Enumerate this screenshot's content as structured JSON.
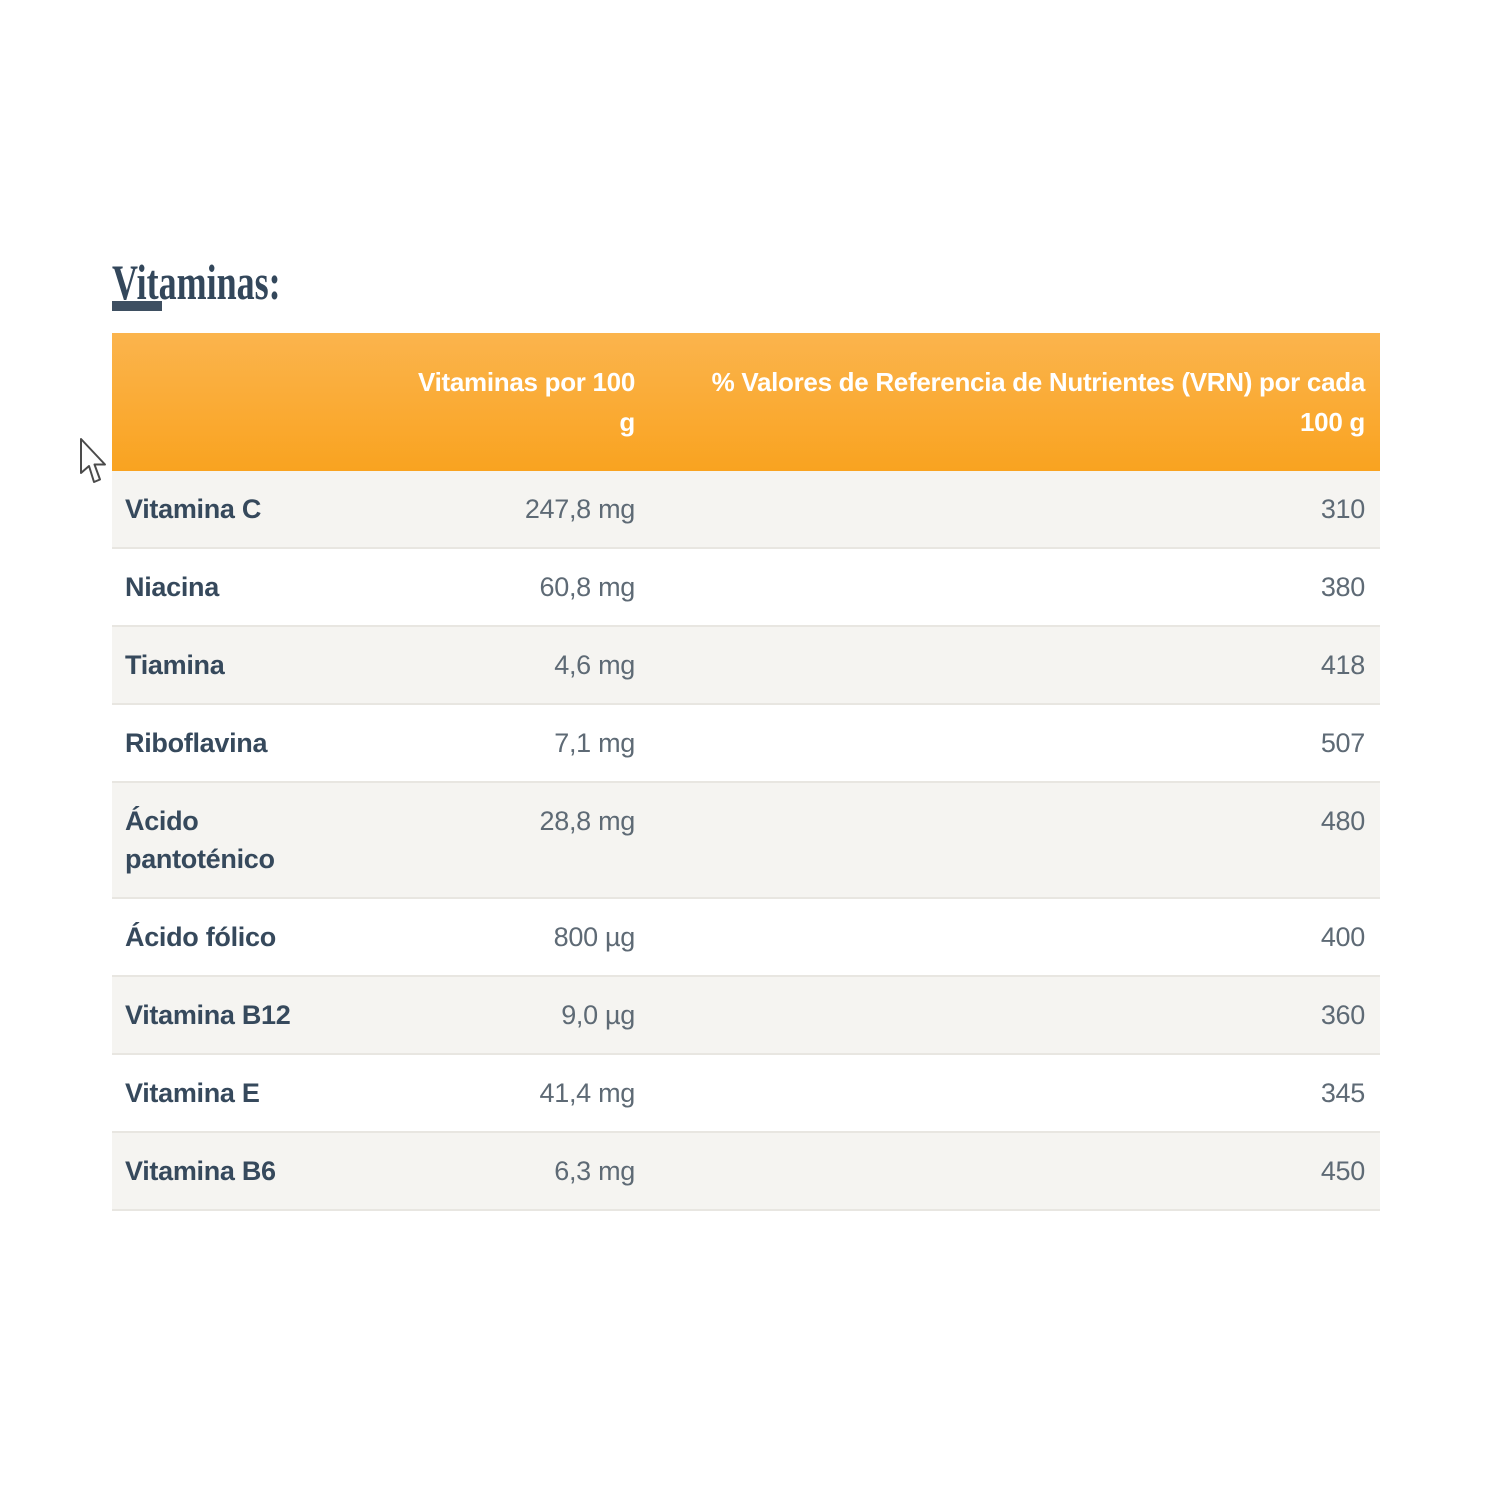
{
  "page": {
    "title": "Vitaminas:"
  },
  "table": {
    "headers": {
      "label": "",
      "amount": "Vitaminas por 100\ng",
      "vrn": "% Valores de Referencia de Nutrientes (VRN) por cada\n100 g"
    },
    "rows": [
      {
        "label": "Vitamina C",
        "amount": "247,8 mg",
        "vrn": "310"
      },
      {
        "label": "Niacina",
        "amount": "60,8 mg",
        "vrn": "380"
      },
      {
        "label": "Tiamina",
        "amount": "4,6 mg",
        "vrn": "418"
      },
      {
        "label": "Riboflavina",
        "amount": "7,1 mg",
        "vrn": "507"
      },
      {
        "label": "Ácido\npantoténico",
        "amount": "28,8 mg",
        "vrn": "480"
      },
      {
        "label": "Ácido fólico",
        "amount": "800 µg",
        "vrn": "400"
      },
      {
        "label": "Vitamina B12",
        "amount": "9,0 µg",
        "vrn": "360"
      },
      {
        "label": "Vitamina E",
        "amount": "41,4 mg",
        "vrn": "345"
      },
      {
        "label": "Vitamina B6",
        "amount": "6,3 mg",
        "vrn": "450"
      }
    ]
  },
  "icons": {
    "cursor": "arrow-pointer"
  },
  "colors": {
    "header_orange_top": "#fbb44d",
    "header_orange_bottom": "#f9a320",
    "heading_text": "#33475b",
    "label_text": "#36495c",
    "value_text": "#5e6a75",
    "row_alt_bg": "#f5f4f1",
    "row_bg": "#ffffff",
    "row_border": "#e8e6e1",
    "header_text": "#ffffff",
    "dash": "#3e4f61"
  }
}
